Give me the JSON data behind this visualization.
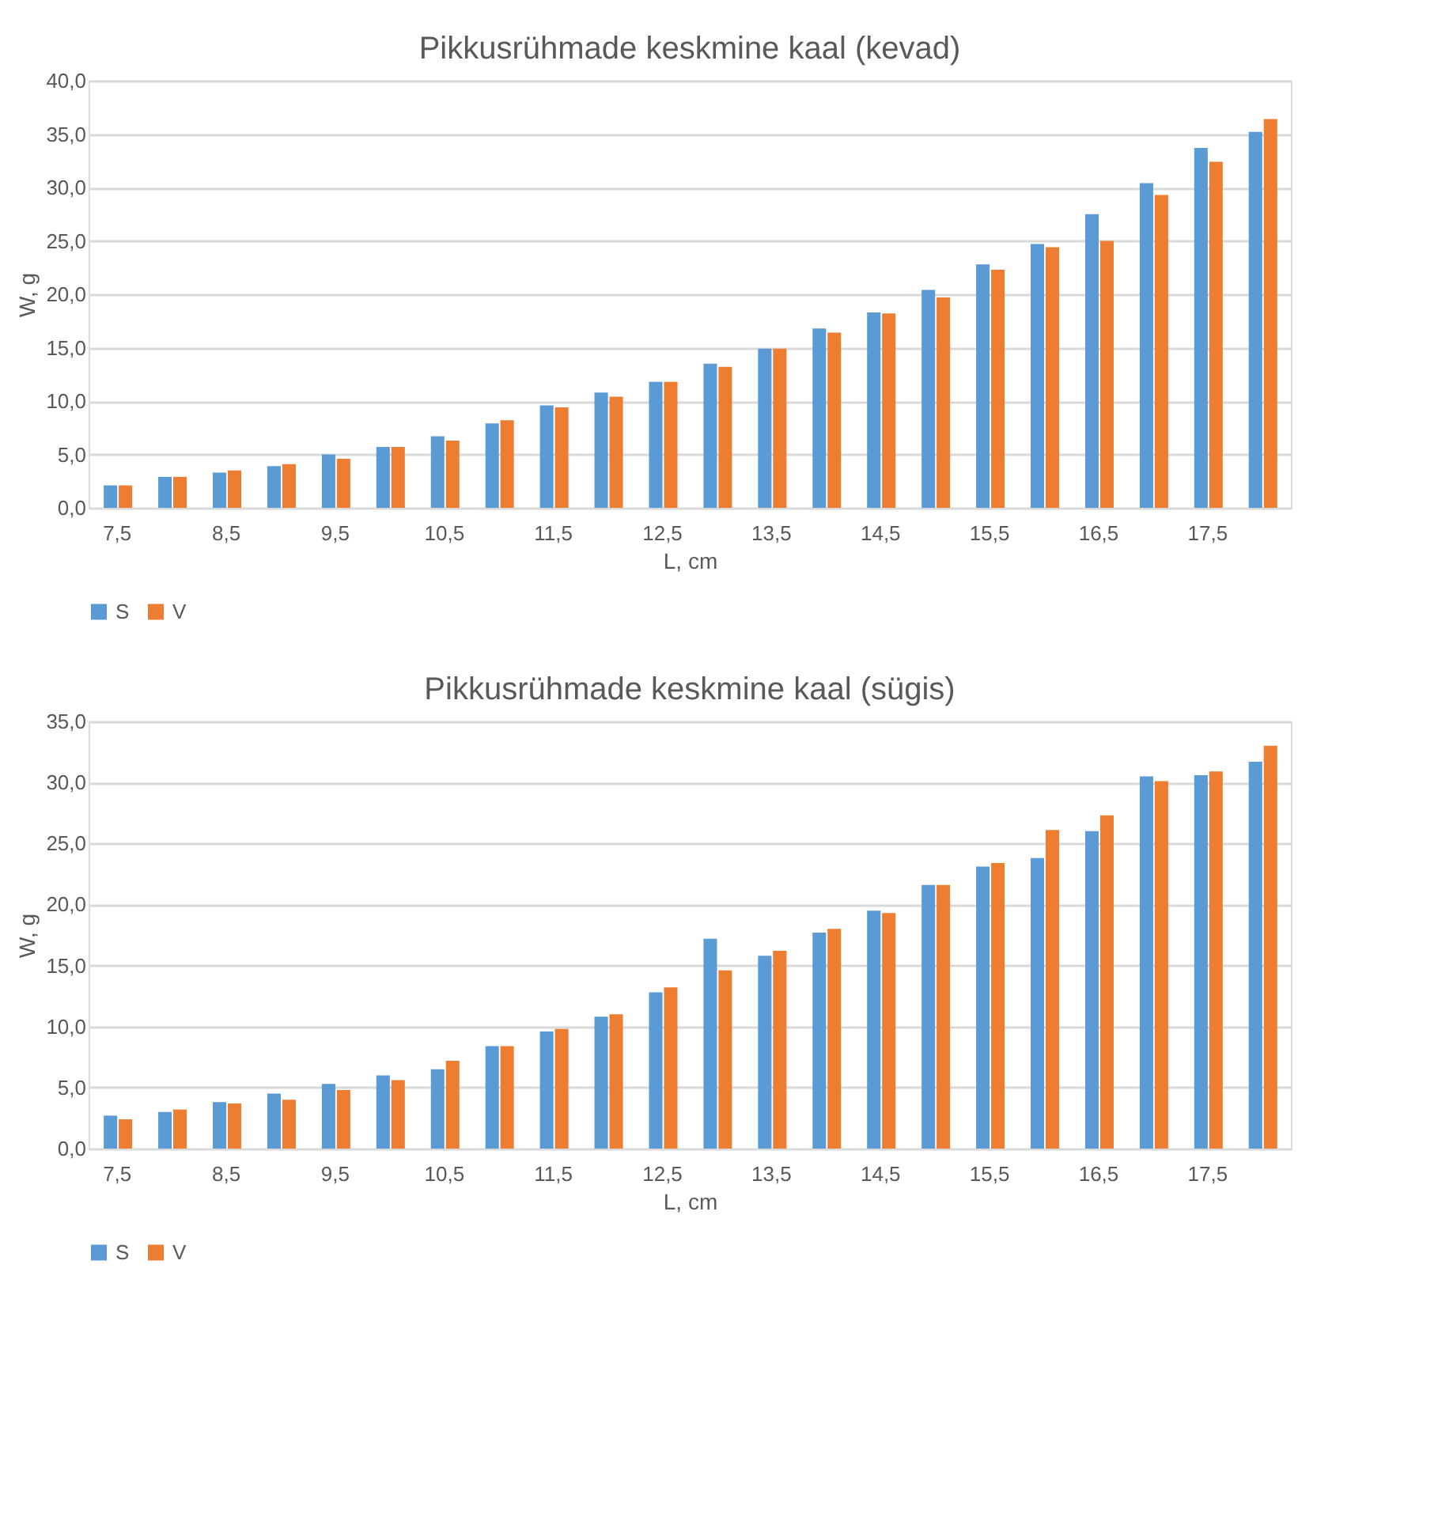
{
  "chart_data": [
    {
      "type": "bar",
      "title": "Pikkusrühmade keskmine kaal (kevad)",
      "xlabel": "L, cm",
      "ylabel": "W, g",
      "categories": [
        "7,5",
        null,
        "8,5",
        null,
        "9,5",
        null,
        "10,5",
        null,
        "11,5",
        null,
        "12,5",
        null,
        "13,5",
        null,
        "14,5",
        null,
        "15,5",
        null,
        "16,5",
        null,
        "17,5",
        null
      ],
      "series": [
        {
          "name": "S",
          "color": "#5b9bd5",
          "values": [
            2.1,
            2.9,
            3.3,
            3.9,
            5.0,
            5.7,
            6.7,
            7.9,
            9.6,
            10.8,
            11.8,
            13.5,
            14.9,
            16.8,
            18.3,
            20.4,
            22.8,
            24.7,
            27.5,
            30.4,
            33.7,
            35.2
          ]
        },
        {
          "name": "V",
          "color": "#ed7d31",
          "values": [
            2.1,
            2.9,
            3.5,
            4.1,
            4.6,
            5.7,
            6.3,
            8.2,
            9.4,
            10.4,
            11.8,
            13.2,
            14.9,
            16.4,
            18.2,
            19.7,
            22.3,
            24.4,
            25.0,
            29.3,
            32.4,
            36.4
          ]
        }
      ],
      "ylim": [
        0,
        40
      ],
      "yticks": [
        {
          "value": 0,
          "label": "0,0"
        },
        {
          "value": 5,
          "label": "5,0"
        },
        {
          "value": 10,
          "label": "10,0"
        },
        {
          "value": 15,
          "label": "15,0"
        },
        {
          "value": 20,
          "label": "20,0"
        },
        {
          "value": 25,
          "label": "25,0"
        },
        {
          "value": 30,
          "label": "30,0"
        },
        {
          "value": 35,
          "label": "35,0"
        },
        {
          "value": 40,
          "label": "40,0"
        }
      ],
      "grid": "y",
      "legend": "bottom"
    },
    {
      "type": "bar",
      "title": "Pikkusrühmade keskmine kaal (sügis)",
      "xlabel": "L, cm",
      "ylabel": "W, g",
      "categories": [
        "7,5",
        null,
        "8,5",
        null,
        "9,5",
        null,
        "10,5",
        null,
        "11,5",
        null,
        "12,5",
        null,
        "13,5",
        null,
        "14,5",
        null,
        "15,5",
        null,
        "16,5",
        null,
        "17,5",
        null
      ],
      "series": [
        {
          "name": "S",
          "color": "#5b9bd5",
          "values": [
            2.7,
            3.0,
            3.8,
            4.5,
            5.3,
            6.0,
            6.5,
            8.4,
            9.6,
            10.8,
            12.8,
            17.2,
            15.8,
            17.7,
            19.5,
            21.6,
            23.1,
            23.8,
            26.0,
            30.5,
            30.6,
            31.7
          ]
        },
        {
          "name": "V",
          "color": "#ed7d31",
          "values": [
            2.4,
            3.2,
            3.7,
            4.0,
            4.8,
            5.6,
            7.2,
            8.4,
            9.8,
            11.0,
            13.2,
            14.6,
            16.2,
            18.0,
            19.3,
            21.6,
            23.4,
            26.1,
            27.3,
            30.1,
            30.9,
            33.0
          ]
        }
      ],
      "ylim": [
        0,
        35
      ],
      "yticks": [
        {
          "value": 0,
          "label": "0,0"
        },
        {
          "value": 5,
          "label": "5,0"
        },
        {
          "value": 10,
          "label": "10,0"
        },
        {
          "value": 15,
          "label": "15,0"
        },
        {
          "value": 20,
          "label": "20,0"
        },
        {
          "value": 25,
          "label": "25,0"
        },
        {
          "value": 30,
          "label": "30,0"
        },
        {
          "value": 35,
          "label": "35,0"
        }
      ],
      "grid": "y",
      "legend": "bottom"
    }
  ]
}
